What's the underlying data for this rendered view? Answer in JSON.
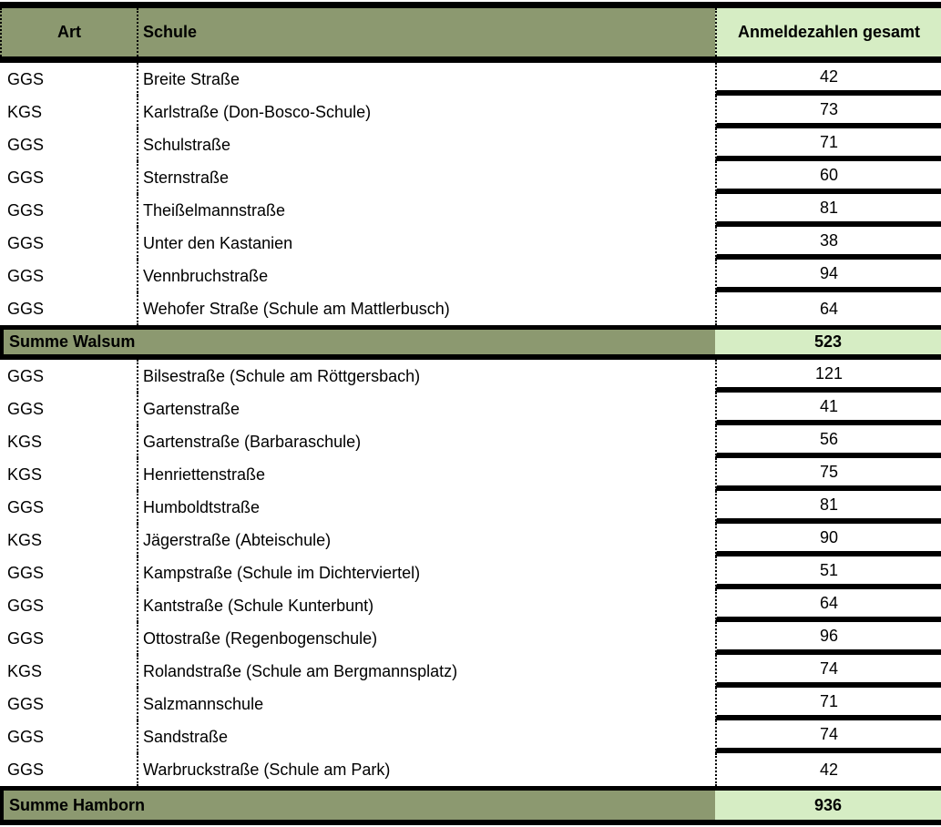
{
  "colors": {
    "header_olive": "#8C9970",
    "summary_light_green": "#D6EDC4",
    "border_black": "#000000"
  },
  "table": {
    "columns": {
      "art": "Art",
      "schule": "Schule",
      "anmeldezahlen": "Anmeldezahlen gesamt"
    },
    "sections": [
      {
        "rows": [
          {
            "art": "GGS",
            "schule": "Breite Straße",
            "anzahl": "42"
          },
          {
            "art": "KGS",
            "schule": "Karlstraße (Don-Bosco-Schule)",
            "anzahl": "73"
          },
          {
            "art": "GGS",
            "schule": "Schulstraße",
            "anzahl": "71"
          },
          {
            "art": "GGS",
            "schule": "Sternstraße",
            "anzahl": "60"
          },
          {
            "art": "GGS",
            "schule": "Theißelmannstraße",
            "anzahl": "81"
          },
          {
            "art": "GGS",
            "schule": "Unter den Kastanien",
            "anzahl": "38"
          },
          {
            "art": "GGS",
            "schule": "Vennbruchstraße",
            "anzahl": "94"
          },
          {
            "art": "GGS",
            "schule": "Wehofer Straße (Schule am Mattlerbusch)",
            "anzahl": "64"
          }
        ],
        "summe": {
          "label": "Summe Walsum",
          "anzahl": "523"
        }
      },
      {
        "rows": [
          {
            "art": "GGS",
            "schule": "Bilsestraße (Schule am Röttgersbach)",
            "anzahl": "121"
          },
          {
            "art": "GGS",
            "schule": "Gartenstraße",
            "anzahl": "41"
          },
          {
            "art": "KGS",
            "schule": "Gartenstraße (Barbaraschule)",
            "anzahl": "56"
          },
          {
            "art": "KGS",
            "schule": "Henriettenstraße",
            "anzahl": "75"
          },
          {
            "art": "GGS",
            "schule": "Humboldtstraße",
            "anzahl": "81"
          },
          {
            "art": "KGS",
            "schule": "Jägerstraße (Abteischule)",
            "anzahl": "90"
          },
          {
            "art": "GGS",
            "schule": "Kampstraße (Schule im Dichterviertel)",
            "anzahl": "51"
          },
          {
            "art": "GGS",
            "schule": "Kantstraße (Schule Kunterbunt)",
            "anzahl": "64"
          },
          {
            "art": "GGS",
            "schule": "Ottostraße (Regenbogenschule)",
            "anzahl": "96"
          },
          {
            "art": "KGS",
            "schule": "Rolandstraße (Schule am Bergmannsplatz)",
            "anzahl": "74"
          },
          {
            "art": "GGS",
            "schule": "Salzmannschule",
            "anzahl": "71"
          },
          {
            "art": "GGS",
            "schule": "Sandstraße",
            "anzahl": "74"
          },
          {
            "art": "GGS",
            "schule": "Warbruckstraße (Schule am Park)",
            "anzahl": "42"
          }
        ],
        "summe": {
          "label": "Summe Hamborn",
          "anzahl": "936"
        }
      }
    ]
  }
}
